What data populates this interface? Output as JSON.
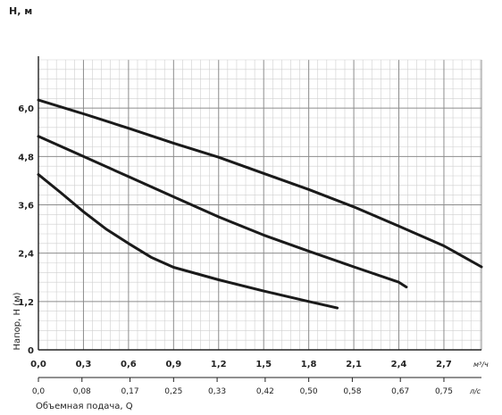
{
  "chart_data": {
    "type": "line",
    "title": "",
    "y_axis_title": "H, м",
    "ylabel": "Напор, Н (м)",
    "xlabel": "Объемная подача, Q",
    "x_unit": "м³/ч",
    "x2_unit": "л/с",
    "xlim": [
      0,
      2.95
    ],
    "ylim": [
      0,
      7.2
    ],
    "grid": true,
    "x_ticks": [
      0.0,
      0.3,
      0.6,
      0.9,
      1.2,
      1.5,
      1.8,
      2.1,
      2.4,
      2.7
    ],
    "x_tick_labels": [
      "0,0",
      "0,3",
      "0,6",
      "0,9",
      "1,2",
      "1,5",
      "1,8",
      "2,1",
      "2,4",
      "2,7"
    ],
    "y_ticks": [
      0,
      1.2,
      2.4,
      3.6,
      4.8,
      6.0
    ],
    "y_tick_labels": [
      "0",
      "1,2",
      "2,4",
      "3,6",
      "4,8",
      "6,0"
    ],
    "x2_ticks": [
      0.0,
      0.29,
      0.61,
      0.9,
      1.19,
      1.51,
      1.8,
      2.09,
      2.41,
      2.7
    ],
    "x2_tick_labels": [
      "0,0",
      "0,08",
      "0,17",
      "0,25",
      "0,33",
      "0,42",
      "0,50",
      "0,58",
      "0,67",
      "0,75"
    ],
    "series": [
      {
        "x": [
          0.0,
          0.3,
          0.6,
          0.9,
          1.2,
          1.5,
          1.8,
          2.1,
          2.4,
          2.7,
          2.95
        ],
        "y": [
          6.2,
          5.86,
          5.5,
          5.13,
          4.78,
          4.38,
          3.98,
          3.55,
          3.07,
          2.58,
          2.06
        ]
      },
      {
        "x": [
          0.0,
          0.3,
          0.6,
          0.9,
          1.2,
          1.5,
          1.8,
          2.1,
          2.4,
          2.45
        ],
        "y": [
          5.3,
          4.8,
          4.3,
          3.8,
          3.3,
          2.85,
          2.45,
          2.06,
          1.68,
          1.56
        ]
      },
      {
        "x": [
          0.0,
          0.15,
          0.3,
          0.45,
          0.6,
          0.75,
          0.9,
          1.2,
          1.5,
          1.8,
          1.99
        ],
        "y": [
          4.35,
          3.9,
          3.43,
          3.0,
          2.64,
          2.3,
          2.05,
          1.74,
          1.46,
          1.2,
          1.04
        ]
      }
    ]
  }
}
